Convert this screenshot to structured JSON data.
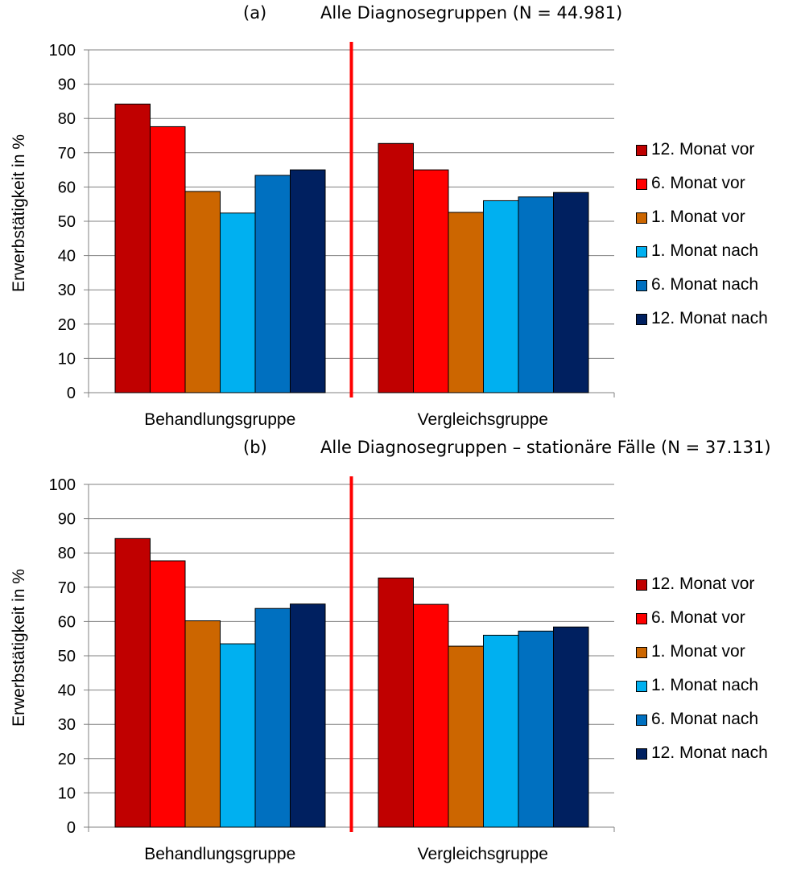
{
  "chart_data": [
    {
      "type": "bar",
      "panel": "(a)",
      "title": "Alle Diagnosegruppen (N = 44.981)",
      "xlabel": "",
      "ylabel": "Erwerbstätigkeit in %",
      "ylim": [
        0,
        100
      ],
      "yticks": [
        "0",
        "10",
        "20",
        "30",
        "40",
        "50",
        "60",
        "70",
        "80",
        "90",
        "100"
      ],
      "categories": [
        "Behandlungsgruppe",
        "Vergleichsgruppe"
      ],
      "legend_position": "right",
      "grid": true,
      "divider_color": "#ff0000",
      "series": [
        {
          "name": "12. Monat vor",
          "color": "#c00000",
          "values": [
            84.2,
            72.7
          ]
        },
        {
          "name": "6. Monat vor",
          "color": "#ff0000",
          "values": [
            77.6,
            65.0
          ]
        },
        {
          "name": "1. Monat vor",
          "color": "#cc6600",
          "values": [
            58.7,
            52.6
          ]
        },
        {
          "name": "1. Monat nach",
          "color": "#00b0f0",
          "values": [
            52.4,
            56.0
          ]
        },
        {
          "name": "6. Monat nach",
          "color": "#0070c0",
          "values": [
            63.4,
            57.1
          ]
        },
        {
          "name": "12. Monat nach",
          "color": "#002060",
          "values": [
            65.0,
            58.4
          ]
        }
      ]
    },
    {
      "type": "bar",
      "panel": "(b)",
      "title": "Alle Diagnosegruppen – stationäre Fälle (N = 37.131)",
      "xlabel": "",
      "ylabel": "Erwerbstätigkeit in %",
      "ylim": [
        0,
        100
      ],
      "yticks": [
        "0",
        "10",
        "20",
        "30",
        "40",
        "50",
        "60",
        "70",
        "80",
        "90",
        "100"
      ],
      "categories": [
        "Behandlungsgruppe",
        "Vergleichsgruppe"
      ],
      "legend_position": "right",
      "grid": true,
      "divider_color": "#ff0000",
      "series": [
        {
          "name": "12. Monat vor",
          "color": "#c00000",
          "values": [
            84.2,
            72.7
          ]
        },
        {
          "name": "6. Monat vor",
          "color": "#ff0000",
          "values": [
            77.7,
            65.0
          ]
        },
        {
          "name": "1. Monat vor",
          "color": "#cc6600",
          "values": [
            60.2,
            52.8
          ]
        },
        {
          "name": "1. Monat nach",
          "color": "#00b0f0",
          "values": [
            53.5,
            56.0
          ]
        },
        {
          "name": "6. Monat nach",
          "color": "#0070c0",
          "values": [
            63.8,
            57.2
          ]
        },
        {
          "name": "12. Monat nach",
          "color": "#002060",
          "values": [
            65.1,
            58.4
          ]
        }
      ]
    }
  ]
}
